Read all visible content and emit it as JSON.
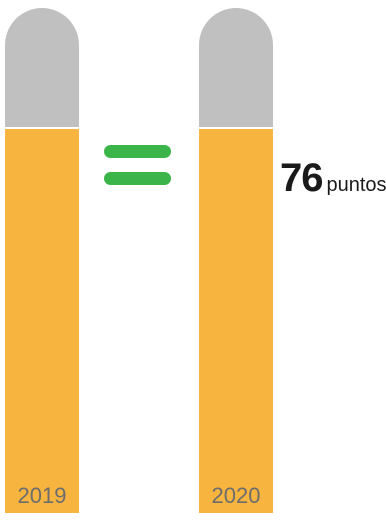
{
  "chart_data": {
    "type": "bar",
    "categories": [
      "2019",
      "2020"
    ],
    "values": [
      76,
      76
    ],
    "ylim": [
      0,
      100
    ],
    "data_label": {
      "value": "76",
      "unit": "puntos"
    },
    "relation": "=",
    "colors": {
      "fill": "#f7b43e",
      "empty": "#c0c0c0",
      "equals": "#3bb54a",
      "category_label": "#6d6d6d"
    }
  }
}
